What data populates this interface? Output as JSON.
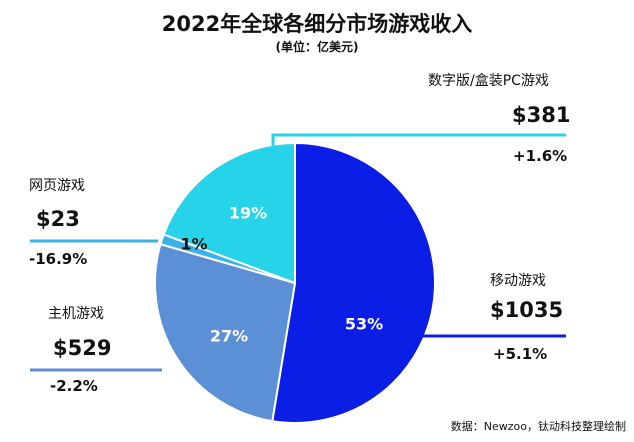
{
  "title": "2022年全球各细分市场游戏收入",
  "subtitle": "(单位：亿美元)",
  "source": "数据：Newzoo，钛动科技整理绘制",
  "chart_data": {
    "type": "pie",
    "title": "2022年全球各细分市场游戏收入",
    "unit": "亿美元",
    "segments": [
      {
        "name": "移动游戏",
        "value_label": "$1035",
        "value": 1035,
        "percent": 53,
        "percent_label": "53%",
        "change": "+5.1%",
        "color": "#0a1ee6"
      },
      {
        "name": "主机游戏",
        "value_label": "$529",
        "value": 529,
        "percent": 27,
        "percent_label": "27%",
        "change": "-2.2%",
        "color": "#5b8fd6"
      },
      {
        "name": "网页游戏",
        "value_label": "$23",
        "value": 23,
        "percent": 1,
        "percent_label": "1%",
        "change": "-16.9%",
        "color": "#3ab1e8"
      },
      {
        "name": "数字版/盒装PC游戏",
        "value_label": "$381",
        "value": 381,
        "percent": 19,
        "percent_label": "19%",
        "change": "+1.6%",
        "color": "#27d3e8"
      }
    ]
  }
}
